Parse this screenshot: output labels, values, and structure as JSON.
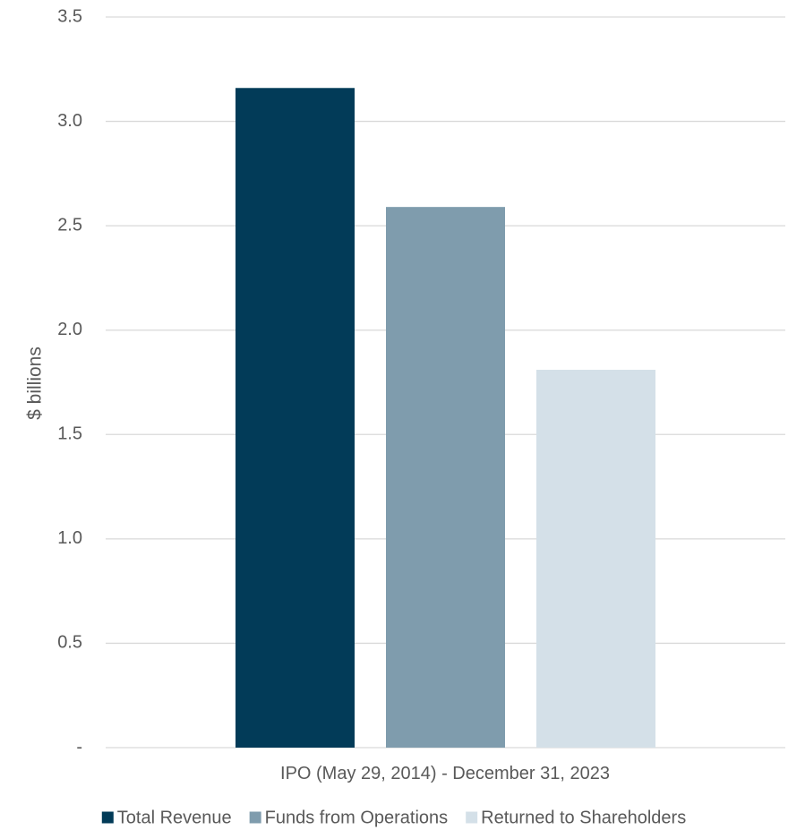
{
  "chart_data": {
    "type": "bar",
    "title": "",
    "ylabel": "$ billions",
    "xlabel": "",
    "categories": [
      "IPO (May 29, 2014) - December 31, 2023"
    ],
    "ylim": [
      0,
      3.5
    ],
    "y_ticks": [
      {
        "value": 0,
        "label": "-"
      },
      {
        "value": 0.5,
        "label": "0.5"
      },
      {
        "value": 1.0,
        "label": "1.0"
      },
      {
        "value": 1.5,
        "label": "1.5"
      },
      {
        "value": 2.0,
        "label": "2.0"
      },
      {
        "value": 2.5,
        "label": "2.5"
      },
      {
        "value": 3.0,
        "label": "3.0"
      },
      {
        "value": 3.5,
        "label": "3.5"
      }
    ],
    "grid": true,
    "legend_position": "bottom",
    "series": [
      {
        "name": "Total Revenue",
        "values": [
          3.16
        ],
        "color": "#023b58"
      },
      {
        "name": "Funds from Operations",
        "values": [
          2.59
        ],
        "color": "#7f9cad"
      },
      {
        "name": "Returned to Shareholders",
        "values": [
          1.81
        ],
        "color": "#d4e0e8"
      }
    ]
  }
}
